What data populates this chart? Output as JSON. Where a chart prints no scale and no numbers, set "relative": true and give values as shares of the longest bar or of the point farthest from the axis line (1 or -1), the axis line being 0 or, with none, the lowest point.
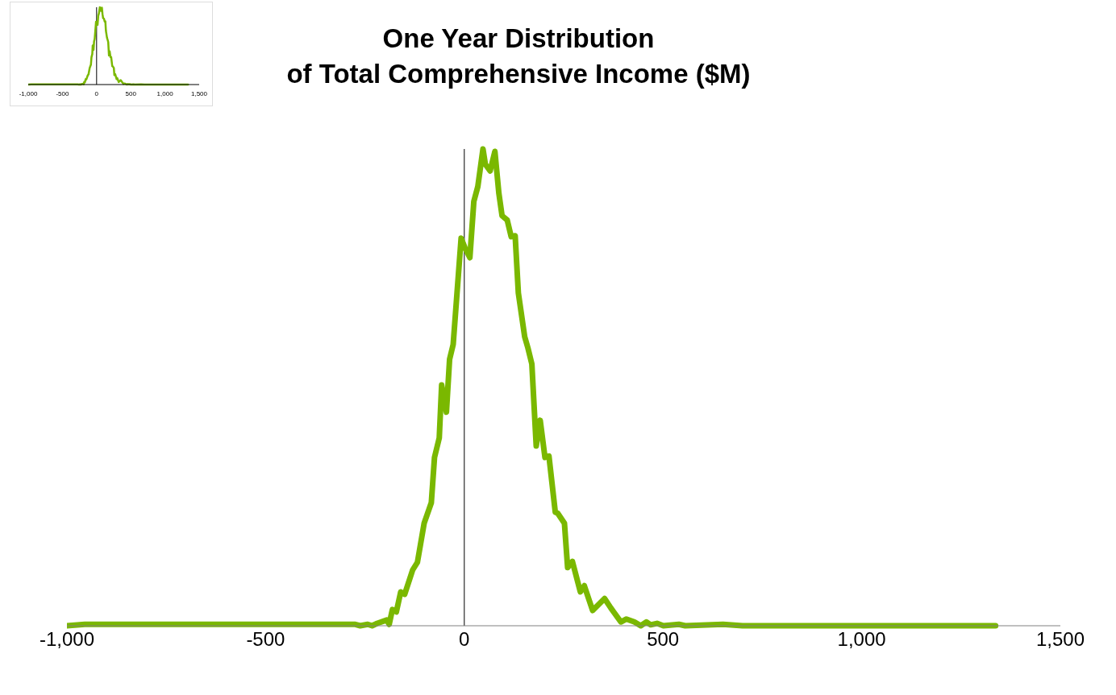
{
  "chart_data": [
    {
      "type": "line",
      "title": "One Year Distribution\nof Total Comprehensive Income ($M)",
      "relative": true,
      "xlim": [
        -1000,
        1500
      ],
      "xticks": [
        {
          "value": -1000,
          "label": "-1,000"
        },
        {
          "value": -500,
          "label": "-500"
        },
        0,
        {
          "value": 500,
          "label": "500"
        },
        {
          "value": 1000,
          "label": "1,000"
        },
        {
          "value": 1500,
          "label": "1,500"
        }
      ],
      "x": [
        -1000,
        -955,
        -905,
        -864,
        -706,
        -645,
        -550,
        -489,
        -428,
        -367,
        -316,
        -276,
        -262,
        -243,
        -232,
        -219,
        -195,
        -189,
        -181,
        -171,
        -160,
        -150,
        -130,
        -118,
        -101,
        -83,
        -75,
        -63,
        -57,
        -45,
        -37,
        -28,
        -8,
        2,
        14,
        24,
        34,
        47,
        53,
        65,
        77,
        87,
        95,
        108,
        118,
        128,
        136,
        152,
        160,
        170,
        181,
        191,
        203,
        213,
        229,
        235,
        252,
        260,
        272,
        292,
        302,
        323,
        353,
        369,
        394,
        408,
        428,
        444,
        458,
        469,
        485,
        501,
        540,
        556,
        651,
        700,
        1337
      ],
      "series": [
        {
          "color": "#7ab800",
          "values": [
            0,
            0.003,
            0.003,
            0.003,
            0.003,
            0.003,
            0.003,
            0.003,
            0.003,
            0.003,
            0.003,
            0.003,
            0,
            0.003,
            0,
            0.005,
            0.012,
            0.003,
            0.034,
            0.029,
            0.071,
            0.066,
            0.117,
            0.133,
            0.215,
            0.258,
            0.353,
            0.394,
            0.505,
            0.448,
            0.559,
            0.59,
            0.813,
            0.792,
            0.772,
            0.89,
            0.921,
            1,
            0.968,
            0.954,
            0.995,
            0.907,
            0.86,
            0.851,
            0.816,
            0.818,
            0.698,
            0.606,
            0.583,
            0.549,
            0.377,
            0.431,
            0.353,
            0.356,
            0.238,
            0.236,
            0.215,
            0.122,
            0.135,
            0.071,
            0.084,
            0.032,
            0.057,
            0.037,
            0.008,
            0.014,
            0.008,
            0,
            0.008,
            0.002,
            0.005,
            0,
            0.003,
            0,
            0.003,
            0,
            0
          ]
        }
      ],
      "ref_lines": [
        {
          "axis": "x",
          "value": 0,
          "color": "#000000"
        }
      ],
      "marker": "none",
      "legend": false,
      "grid": false
    },
    {
      "type": "line",
      "relative": true,
      "xlim": [
        -1000,
        1500
      ],
      "xticks": [
        {
          "value": -1000,
          "label": "-1,000"
        },
        {
          "value": -500,
          "label": "-500"
        },
        0,
        {
          "value": 500,
          "label": "500"
        },
        {
          "value": 1000,
          "label": "1,000"
        },
        {
          "value": 1500,
          "label": "1,500"
        }
      ],
      "x": [
        -1000,
        -955,
        -905,
        -864,
        -706,
        -645,
        -550,
        -489,
        -428,
        -367,
        -316,
        -276,
        -262,
        -243,
        -232,
        -219,
        -195,
        -189,
        -181,
        -171,
        -160,
        -150,
        -130,
        -118,
        -101,
        -83,
        -75,
        -63,
        -57,
        -45,
        -37,
        -28,
        -8,
        2,
        14,
        24,
        34,
        47,
        53,
        65,
        77,
        87,
        95,
        108,
        118,
        128,
        136,
        152,
        160,
        170,
        181,
        191,
        203,
        213,
        229,
        235,
        252,
        260,
        272,
        292,
        302,
        323,
        353,
        369,
        394,
        408,
        428,
        444,
        458,
        469,
        485,
        501,
        540,
        556,
        651,
        700,
        1337
      ],
      "series": [
        {
          "color": "#7ab800",
          "values": [
            0,
            0.003,
            0.003,
            0.003,
            0.003,
            0.003,
            0.003,
            0.003,
            0.003,
            0.003,
            0.003,
            0.003,
            0,
            0.003,
            0,
            0.005,
            0.012,
            0.003,
            0.034,
            0.029,
            0.071,
            0.066,
            0.117,
            0.133,
            0.215,
            0.258,
            0.353,
            0.394,
            0.505,
            0.448,
            0.559,
            0.59,
            0.813,
            0.792,
            0.772,
            0.89,
            0.921,
            1,
            0.968,
            0.954,
            0.995,
            0.907,
            0.86,
            0.851,
            0.816,
            0.818,
            0.698,
            0.606,
            0.583,
            0.549,
            0.377,
            0.431,
            0.353,
            0.356,
            0.238,
            0.236,
            0.215,
            0.122,
            0.135,
            0.071,
            0.084,
            0.032,
            0.057,
            0.037,
            0.008,
            0.014,
            0.008,
            0,
            0.008,
            0.002,
            0.005,
            0,
            0.003,
            0,
            0.003,
            0,
            0
          ]
        }
      ],
      "ref_lines": [
        {
          "axis": "x",
          "value": 0,
          "color": "#000000"
        }
      ],
      "marker": "none",
      "legend": false,
      "grid": false
    }
  ]
}
